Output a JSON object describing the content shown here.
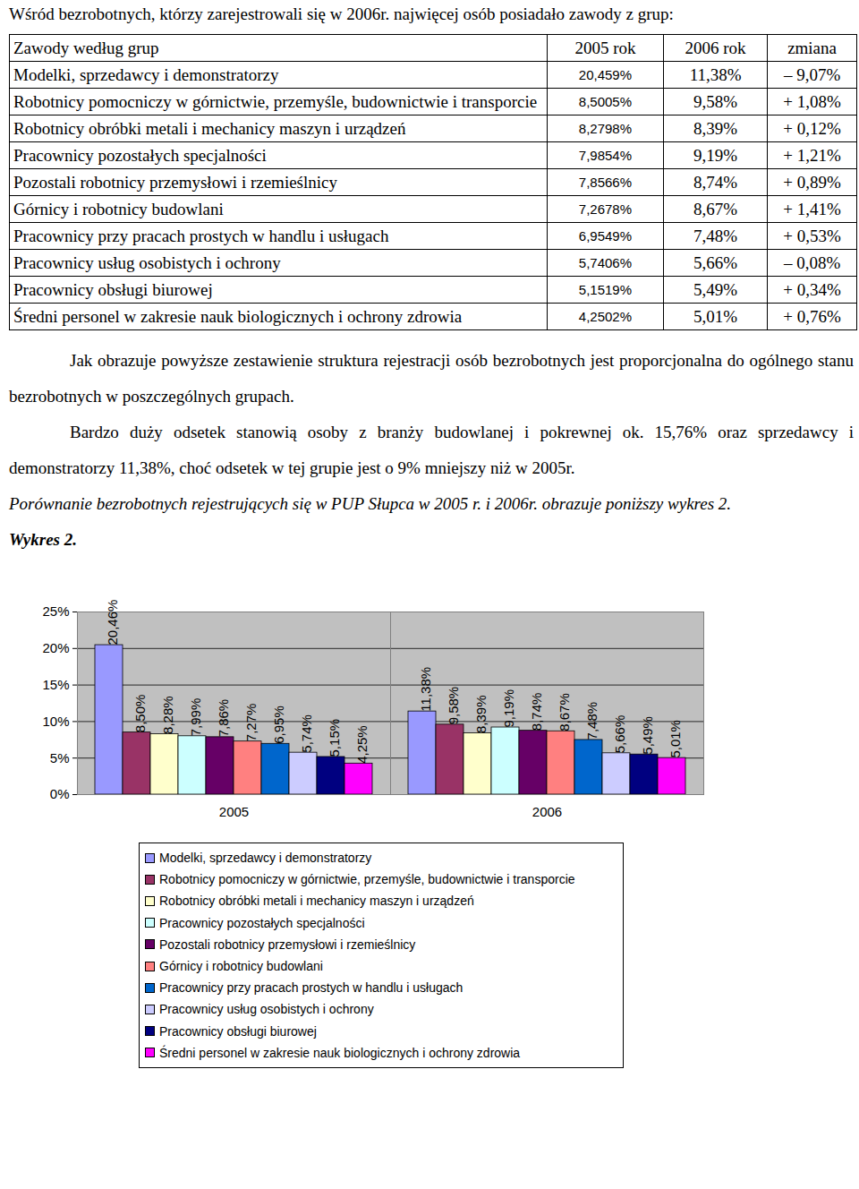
{
  "document": {
    "intro": "Wśród bezrobotnych, którzy zarejestrowali się w 2006r. najwięcej osób posiadało zawody z grup:",
    "table": {
      "header": [
        "Zawody według grup",
        "2005 rok",
        "2006 rok",
        "zmiana"
      ],
      "rows": [
        [
          "Modelki, sprzedawcy i demonstratorzy",
          "20,459%",
          "11,38%",
          "– 9,07%"
        ],
        [
          "Robotnicy pomocniczy w górnictwie, przemyśle, budownictwie i transporcie",
          "8,5005%",
          "9,58%",
          "+ 1,08%"
        ],
        [
          "Robotnicy obróbki metali i mechanicy maszyn i urządzeń",
          "8,2798%",
          "8,39%",
          "+ 0,12%"
        ],
        [
          "Pracownicy pozostałych specjalności",
          "7,9854%",
          "9,19%",
          "+ 1,21%"
        ],
        [
          "Pozostali robotnicy przemysłowi i rzemieślnicy",
          "7,8566%",
          "8,74%",
          "+ 0,89%"
        ],
        [
          "Górnicy i robotnicy budowlani",
          "7,2678%",
          "8,67%",
          "+ 1,41%"
        ],
        [
          "Pracownicy przy pracach prostych w handlu i usługach",
          "6,9549%",
          "7,48%",
          "+ 0,53%"
        ],
        [
          "Pracownicy usług osobistych i ochrony",
          "5,7406%",
          "5,66%",
          "– 0,08%"
        ],
        [
          "Pracownicy obsługi biurowej",
          "5,1519%",
          "5,49%",
          "+ 0,34%"
        ],
        [
          "Średni personel w zakresie nauk biologicznych i ochrony zdrowia",
          "4,2502%",
          "5,01%",
          "+ 0,76%"
        ]
      ]
    },
    "paragraphs": [
      "Jak obrazuje powyższe zestawienie struktura rejestracji osób bezrobotnych jest proporcjonalna do ogólnego stanu bezrobotnych w poszczególnych grupach.",
      "Bardzo duży odsetek stanowią osoby z branży budowlanej i pokrewnej ok. 15,76% oraz sprzedawcy i demonstratorzy 11,38%, choć odsetek w tej grupie jest o 9% mniejszy niż w 2005r."
    ],
    "caption": "Porównanie bezrobotnych rejestrujących się w PUP Słupca w 2005 r. i 2006r. obrazuje poniższy wykres 2.",
    "figure_label": "Wykres 2."
  },
  "chart_data": {
    "type": "bar",
    "categories": [
      "2005",
      "2006"
    ],
    "series": [
      {
        "name": "Modelki, sprzedawcy i demonstratorzy",
        "color": "#9999ff",
        "values": [
          20.46,
          11.38
        ],
        "value_labels": [
          "20,46%",
          "11,38%"
        ]
      },
      {
        "name": "Robotnicy pomocniczy w górnictwie, przemyśle, budownictwie i transporcie",
        "color": "#993366",
        "values": [
          8.5,
          9.58
        ],
        "value_labels": [
          "8,50%",
          "9,58%"
        ]
      },
      {
        "name": "Robotnicy obróbki metali i mechanicy maszyn i urządzeń",
        "color": "#ffffcc",
        "values": [
          8.28,
          8.39
        ],
        "value_labels": [
          "8,28%",
          "8,39%"
        ]
      },
      {
        "name": "Pracownicy pozostałych specjalności",
        "color": "#ccffff",
        "values": [
          7.99,
          9.19
        ],
        "value_labels": [
          "7,99%",
          "9,19%"
        ]
      },
      {
        "name": "Pozostali robotnicy przemysłowi i rzemieślnicy",
        "color": "#660066",
        "values": [
          7.86,
          8.74
        ],
        "value_labels": [
          "7,86%",
          "8,74%"
        ]
      },
      {
        "name": "Górnicy i robotnicy budowlani",
        "color": "#ff8080",
        "values": [
          7.27,
          8.67
        ],
        "value_labels": [
          "7,27%",
          "8,67%"
        ]
      },
      {
        "name": "Pracownicy przy pracach prostych w handlu i usługach",
        "color": "#0066cc",
        "values": [
          6.95,
          7.48
        ],
        "value_labels": [
          "6,95%",
          "7,48%"
        ]
      },
      {
        "name": "Pracownicy usług osobistych i ochrony",
        "color": "#ccccff",
        "values": [
          5.74,
          5.66
        ],
        "value_labels": [
          "5,74%",
          "5,66%"
        ]
      },
      {
        "name": "Pracownicy obsługi biurowej",
        "color": "#000080",
        "values": [
          5.15,
          5.49
        ],
        "value_labels": [
          "5,15%",
          "5,49%"
        ]
      },
      {
        "name": "Średni personel w zakresie nauk biologicznych i ochrony zdrowia",
        "color": "#ff00ff",
        "values": [
          4.25,
          5.01
        ],
        "value_labels": [
          "4,25%",
          "5,01%"
        ]
      }
    ],
    "ylim": [
      0,
      25
    ],
    "yticks": [
      {
        "value": 0,
        "label": "0%"
      },
      {
        "value": 5,
        "label": "5%"
      },
      {
        "value": 10,
        "label": "10%"
      },
      {
        "value": 15,
        "label": "15%"
      },
      {
        "value": 20,
        "label": "20%"
      },
      {
        "value": 25,
        "label": "25%"
      }
    ],
    "grid": true,
    "data_labels": true,
    "legend": "bottom"
  }
}
